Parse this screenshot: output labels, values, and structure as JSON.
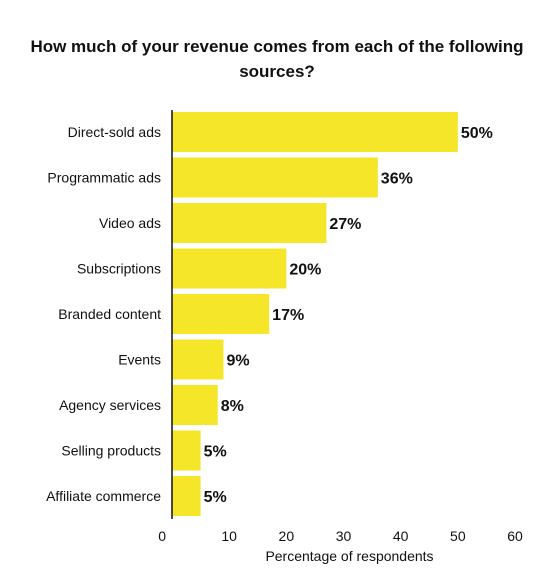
{
  "chart_data": {
    "type": "bar",
    "orientation": "horizontal",
    "title": "How much of your revenue comes from each of the following sources?",
    "xlabel": "Percentage of respondents",
    "ylabel": "",
    "categories": [
      "Direct-sold ads",
      "Programmatic ads",
      "Video ads",
      "Subscriptions",
      "Branded content",
      "Events",
      "Agency services",
      "Selling products",
      "Affiliate commerce"
    ],
    "values": [
      50,
      36,
      27,
      20,
      17,
      9,
      8,
      5,
      5
    ],
    "value_labels": [
      "50%",
      "36%",
      "27%",
      "20%",
      "17%",
      "9%",
      "8%",
      "5%",
      "5%"
    ],
    "xlim": [
      0,
      60
    ],
    "xticks": [
      0,
      10,
      20,
      30,
      40,
      50,
      60
    ],
    "grid": false,
    "legend": "none",
    "bar_color": "#F5E62A"
  }
}
